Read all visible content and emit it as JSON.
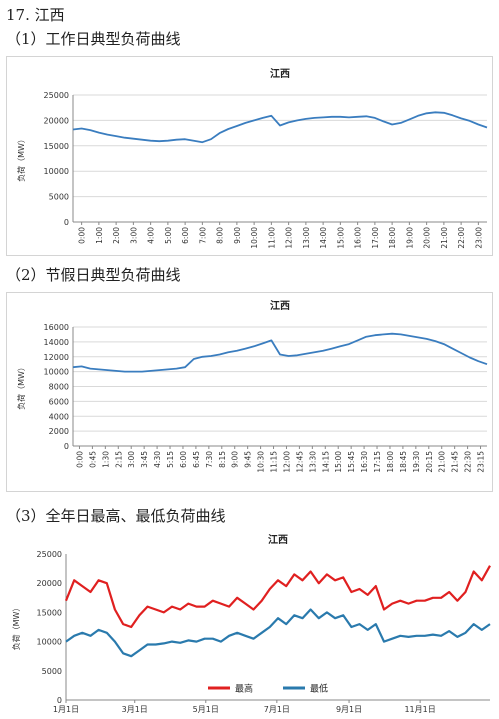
{
  "section": {
    "title": "17. 江西"
  },
  "charts": [
    {
      "heading": "（1）工作日典型负荷曲线"
    },
    {
      "heading": "（2）节假日典型负荷曲线"
    },
    {
      "heading": "（3）全年日最高、最低负荷曲线"
    }
  ],
  "chart_data": [
    {
      "type": "line",
      "title": "江西",
      "ylabel": "负荷（MW）",
      "xlabel": "",
      "ylim": [
        0,
        25000
      ],
      "yticks": [
        0,
        5000,
        10000,
        15000,
        20000,
        25000
      ],
      "xticklabels": [
        "0:00",
        "1:00",
        "2:00",
        "3:00",
        "4:00",
        "5:00",
        "6:00",
        "7:00",
        "8:00",
        "9:00",
        "10:00",
        "11:00",
        "12:00",
        "13:00",
        "14:00",
        "15:00",
        "16:00",
        "17:00",
        "18:00",
        "19:00",
        "20:00",
        "21:00",
        "22:00",
        "23:00"
      ],
      "grid": true,
      "legend": "none",
      "series": [
        {
          "color": "#3a7dbf",
          "x": [
            0,
            0.5,
            1,
            1.5,
            2,
            2.5,
            3,
            3.5,
            4,
            4.5,
            5,
            5.5,
            6,
            6.5,
            7,
            7.5,
            8,
            8.5,
            9,
            9.5,
            10,
            10.5,
            11,
            11.5,
            12,
            12.5,
            13,
            13.5,
            14,
            14.5,
            15,
            15.5,
            16,
            16.5,
            17,
            17.5,
            18,
            18.5,
            19,
            19.5,
            20,
            20.5,
            21,
            21.5,
            22,
            22.5,
            23,
            23.5,
            24
          ],
          "values": [
            18200,
            18400,
            18100,
            17600,
            17200,
            16900,
            16600,
            16400,
            16200,
            16000,
            15900,
            16000,
            16200,
            16300,
            16000,
            15700,
            16300,
            17500,
            18300,
            18900,
            19500,
            20000,
            20500,
            20900,
            19000,
            19600,
            20000,
            20300,
            20500,
            20600,
            20700,
            20700,
            20600,
            20700,
            20800,
            20500,
            19800,
            19200,
            19500,
            20200,
            20900,
            21400,
            21600,
            21500,
            21000,
            20400,
            19900,
            19200,
            18600
          ]
        }
      ]
    },
    {
      "type": "line",
      "title": "江西",
      "ylabel": "负荷（MW）",
      "xlabel": "",
      "ylim": [
        0,
        16000
      ],
      "yticks": [
        0,
        2000,
        4000,
        6000,
        8000,
        10000,
        12000,
        14000,
        16000
      ],
      "xticklabels": [
        "0:00",
        "0:45",
        "1:30",
        "2:15",
        "3:00",
        "3:45",
        "4:30",
        "5:15",
        "6:00",
        "6:45",
        "7:30",
        "8:15",
        "9:00",
        "9:45",
        "10:30",
        "11:15",
        "12:00",
        "12:45",
        "13:30",
        "14:15",
        "15:00",
        "15:45",
        "16:30",
        "17:15",
        "18:00",
        "18:45",
        "19:30",
        "20:15",
        "21:00",
        "21:45",
        "22:30",
        "23:15"
      ],
      "grid": true,
      "legend": "none",
      "series": [
        {
          "color": "#3a7dbf",
          "x": [
            0,
            0.5,
            1,
            1.5,
            2,
            2.5,
            3,
            3.5,
            4,
            4.5,
            5,
            5.5,
            6,
            6.5,
            7,
            7.5,
            8,
            8.5,
            9,
            9.5,
            10,
            10.5,
            11,
            11.5,
            12,
            12.5,
            13,
            13.5,
            14,
            14.5,
            15,
            15.5,
            16,
            16.5,
            17,
            17.5,
            18,
            18.5,
            19,
            19.5,
            20,
            20.5,
            21,
            21.5,
            22,
            22.5,
            23,
            23.5,
            24
          ],
          "values": [
            10600,
            10700,
            10400,
            10300,
            10200,
            10100,
            10000,
            10000,
            10000,
            10100,
            10200,
            10300,
            10400,
            10600,
            11700,
            12000,
            12100,
            12300,
            12600,
            12800,
            13100,
            13400,
            13800,
            14200,
            12300,
            12100,
            12200,
            12400,
            12600,
            12800,
            13100,
            13400,
            13700,
            14200,
            14700,
            14900,
            15000,
            15100,
            15000,
            14800,
            14600,
            14400,
            14100,
            13700,
            13100,
            12500,
            11900,
            11400,
            11000
          ]
        }
      ]
    },
    {
      "type": "line",
      "title": "江西",
      "ylabel": "负荷（MW）",
      "xlabel": "",
      "ylim": [
        0,
        25000
      ],
      "yticks": [
        0,
        5000,
        10000,
        15000,
        20000,
        25000
      ],
      "xticklabels": [
        "1月1日",
        "3月1日",
        "5月1日",
        "7月1日",
        "9月1日",
        "11月1日"
      ],
      "grid": false,
      "legend": "bottom",
      "series": [
        {
          "name": "最高",
          "color": "#e02020",
          "x": [
            1,
            8,
            15,
            22,
            29,
            36,
            43,
            50,
            57,
            64,
            71,
            78,
            85,
            92,
            99,
            106,
            113,
            120,
            127,
            134,
            141,
            148,
            155,
            162,
            169,
            176,
            183,
            190,
            197,
            204,
            211,
            218,
            225,
            232,
            239,
            246,
            253,
            260,
            267,
            274,
            281,
            288,
            295,
            302,
            309,
            316,
            323,
            330,
            337,
            344,
            351,
            358,
            365
          ],
          "values": [
            17000,
            20500,
            19500,
            18500,
            20500,
            20000,
            15500,
            13000,
            12500,
            14500,
            16000,
            15500,
            15000,
            16000,
            15500,
            16500,
            16000,
            16000,
            17000,
            16500,
            16000,
            17500,
            16500,
            15500,
            17000,
            19000,
            20500,
            19500,
            21500,
            20500,
            22000,
            20000,
            21500,
            20500,
            21000,
            18500,
            19000,
            18000,
            19500,
            15500,
            16500,
            17000,
            16500,
            17000,
            17000,
            17500,
            17500,
            18500,
            17000,
            18500,
            22000,
            20500,
            23000
          ]
        },
        {
          "name": "最低",
          "color": "#2a7aad",
          "x": [
            1,
            8,
            15,
            22,
            29,
            36,
            43,
            50,
            57,
            64,
            71,
            78,
            85,
            92,
            99,
            106,
            113,
            120,
            127,
            134,
            141,
            148,
            155,
            162,
            169,
            176,
            183,
            190,
            197,
            204,
            211,
            218,
            225,
            232,
            239,
            246,
            253,
            260,
            267,
            274,
            281,
            288,
            295,
            302,
            309,
            316,
            323,
            330,
            337,
            344,
            351,
            358,
            365
          ],
          "values": [
            10000,
            11000,
            11500,
            11000,
            12000,
            11500,
            10000,
            8000,
            7500,
            8500,
            9500,
            9500,
            9700,
            10000,
            9800,
            10200,
            10000,
            10500,
            10500,
            10000,
            11000,
            11500,
            11000,
            10500,
            11500,
            12500,
            14000,
            13000,
            14500,
            14000,
            15500,
            14000,
            15000,
            14000,
            14500,
            12500,
            13000,
            12000,
            13000,
            10000,
            10500,
            11000,
            10800,
            11000,
            11000,
            11200,
            11000,
            11800,
            10800,
            11500,
            13000,
            12000,
            13000
          ]
        }
      ]
    }
  ]
}
